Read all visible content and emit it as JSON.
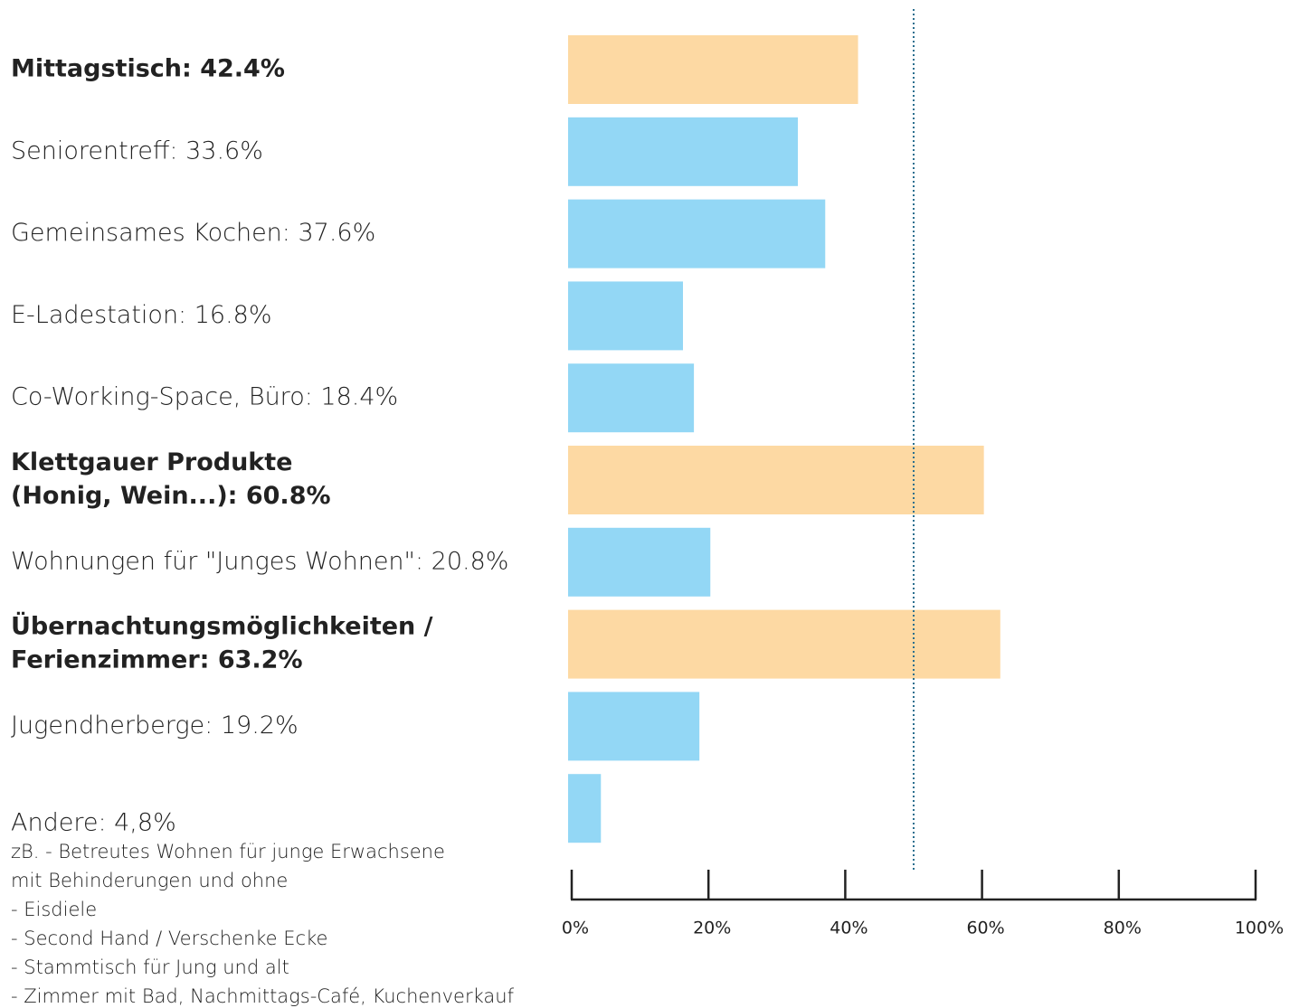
{
  "chart_data": {
    "type": "bar",
    "orientation": "horizontal",
    "categories": [
      [
        "Mittagstisch: 42.4%"
      ],
      [
        "Seniorentreff: 33.6%"
      ],
      [
        "Gemeinsames Kochen: 37.6%"
      ],
      [
        "E-Ladestation: 16.8%"
      ],
      [
        "Co-Working-Space, Büro: 18.4%"
      ],
      [
        "Klettgauer Produkte",
        "(Honig, Wein...): 60.8%"
      ],
      [
        "Wohnungen für \"Junges Wohnen\": 20.8%"
      ],
      [
        "Übernachtungsmöglichkeiten /",
        "Ferienzimmer: 63.2%"
      ],
      [
        "Jugendherberge: 19.2%"
      ],
      [
        "Andere: 4,8%"
      ]
    ],
    "values": [
      42.4,
      33.6,
      37.6,
      16.8,
      18.4,
      60.8,
      20.8,
      63.2,
      19.2,
      4.8
    ],
    "colors": [
      "#fdd9a3",
      "#93d7f5",
      "#93d7f5",
      "#93d7f5",
      "#93d7f5",
      "#fdd9a3",
      "#93d7f5",
      "#fdd9a3",
      "#93d7f5",
      "#93d7f5"
    ],
    "highlight_color": "#fdd9a3",
    "notes": [
      "zB. - Betreutes Wohnen für junge Erwachsene",
      "mit Behinderungen und ohne",
      "- Eisdiele",
      "- Second Hand / Verschenke Ecke",
      "- Stammtisch für Jung und alt",
      "- Zimmer mit Bad, Nachmittags-Café, Kuchenverkauf"
    ],
    "xlim": [
      0,
      100
    ],
    "xticks": [
      {
        "value": 0,
        "label": "0%"
      },
      {
        "value": 20,
        "label": "20%"
      },
      {
        "value": 40,
        "label": "40%"
      },
      {
        "value": 60,
        "label": "60%"
      },
      {
        "value": 80,
        "label": "80%"
      },
      {
        "value": 100,
        "label": "100%"
      }
    ],
    "reference_line": 50,
    "reference_color": "#2a6f8f"
  }
}
